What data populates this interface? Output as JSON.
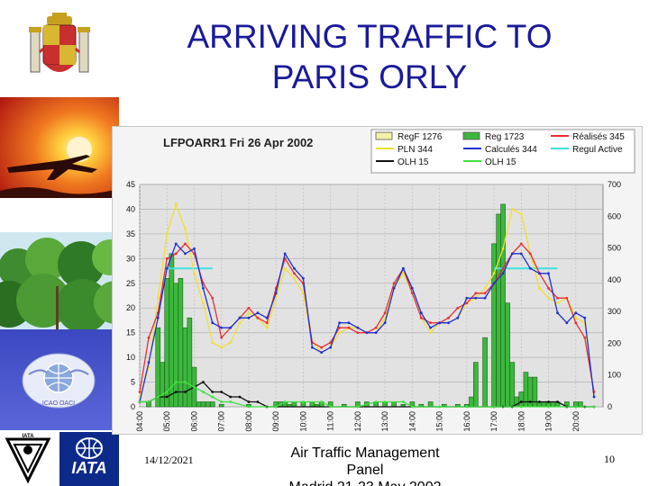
{
  "slide": {
    "title_line1": "ARRIVING TRAFFIC TO",
    "title_line2": "PARIS ORLY",
    "footer_date": "14/12/2021",
    "footer_center_line1": "Air Traffic Management",
    "footer_center_line2": "Panel",
    "footer_center_line3": "Madrid 21-23 May 2002",
    "page_number": "10",
    "logo_bottom_right_text": "IATA",
    "logo_bottom_left_text": "IATA",
    "icao_badge_text": "ICAO OACI",
    "colors": {
      "title": "#1a1a9a",
      "sidebar_top": "#c0302a",
      "sidebar_mid": "#4aa13a",
      "sidebar_low": "#4a56c8",
      "iata_blue": "#0d2a8a"
    }
  },
  "chart_data": {
    "type": "bar",
    "title": "LFPOARR1 Fri 26 Apr 2002",
    "xlabel": "",
    "ylabel": "",
    "ylim": [
      0,
      45
    ],
    "y2lim": [
      0,
      700
    ],
    "yticks": [
      "0",
      "5",
      "10",
      "15",
      "20",
      "25",
      "30",
      "35",
      "40",
      "45"
    ],
    "y2ticks": [
      "0",
      "100",
      "200",
      "300",
      "400",
      "500",
      "600",
      "700"
    ],
    "xticks": [
      "04:00",
      "05:00",
      "06:00",
      "07:00",
      "08:00",
      "09:00",
      "10:00",
      "11:00",
      "12:00",
      "13:00",
      "14:00",
      "15:00",
      "16:00",
      "17:00",
      "18:00",
      "19:00",
      "20:00"
    ],
    "grid": true,
    "legend_position": "top",
    "legend": [
      {
        "label": "RegF 1276",
        "kind": "box",
        "color": "#f4f2a8"
      },
      {
        "label": "Reg 1723",
        "kind": "box",
        "color": "#3cb83c"
      },
      {
        "label": "Réalisés 345",
        "kind": "line",
        "color": "#e83030"
      },
      {
        "label": "PLN 344",
        "kind": "line",
        "color": "#f0e030"
      },
      {
        "label": "Calculés 344",
        "kind": "line",
        "color": "#2030d0"
      },
      {
        "label": "Regul Active",
        "kind": "line",
        "color": "#40e0e0"
      },
      {
        "label": "OLH 15",
        "kind": "line",
        "color": "#101010"
      },
      {
        "label": "OLH 15",
        "kind": "line",
        "color": "#40e040"
      }
    ],
    "bars_reg": {
      "x": [
        4.33,
        4.67,
        4.83,
        5.0,
        5.17,
        5.33,
        5.5,
        5.67,
        5.83,
        6.0,
        6.17,
        6.33,
        6.5,
        6.67,
        7.0,
        8.0,
        9.0,
        9.17,
        9.33,
        9.5,
        9.67,
        10.0,
        10.33,
        10.5,
        10.67,
        11.0,
        11.5,
        12.0,
        12.33,
        12.67,
        13.0,
        13.33,
        13.67,
        14.0,
        14.33,
        14.67,
        15.17,
        15.67,
        16.0,
        16.17,
        16.33,
        16.67,
        17.0,
        17.17,
        17.33,
        17.5,
        17.67,
        17.83,
        18.0,
        18.17,
        18.33,
        18.5,
        18.67,
        18.83,
        19.0,
        19.17,
        19.33,
        19.67,
        20.0,
        20.17
      ],
      "values": [
        1,
        16,
        9,
        26,
        31,
        25,
        26,
        16,
        18,
        8,
        1,
        1,
        1,
        1,
        0.5,
        0.5,
        1,
        1,
        1,
        0.5,
        1,
        1,
        1,
        0.5,
        1,
        1,
        0.5,
        1,
        1,
        1,
        1,
        1,
        0.5,
        1,
        0.5,
        1,
        0.5,
        0.5,
        0.5,
        2,
        9,
        14,
        33,
        39,
        41,
        21,
        9,
        2,
        3,
        7,
        6,
        6,
        1,
        1,
        1,
        1,
        1,
        1,
        1,
        1
      ]
    },
    "series": [
      {
        "name": "PLN 344",
        "color": "#f0e030",
        "x": [
          4.0,
          4.33,
          4.67,
          5.0,
          5.33,
          5.67,
          6.0,
          6.33,
          6.67,
          7.0,
          7.33,
          7.67,
          8.0,
          8.33,
          8.67,
          9.0,
          9.33,
          9.67,
          10.0,
          10.33,
          10.67,
          11.0,
          11.33,
          11.67,
          12.0,
          12.33,
          12.67,
          13.0,
          13.33,
          13.67,
          14.0,
          14.33,
          14.67,
          15.0,
          15.33,
          15.67,
          16.0,
          16.33,
          16.67,
          17.0,
          17.33,
          17.67,
          18.0,
          18.33,
          18.67,
          19.0,
          19.33,
          19.67,
          20.0,
          20.33,
          20.67
        ],
        "values": [
          2,
          8,
          22,
          35,
          41,
          36,
          27,
          21,
          13,
          12,
          13,
          17,
          19,
          18,
          16,
          22,
          28,
          26,
          23,
          13,
          11,
          12,
          15,
          16,
          16,
          15,
          15,
          18,
          24,
          27,
          23,
          18,
          15,
          17,
          17,
          18,
          21,
          22,
          24,
          27,
          32,
          40,
          39,
          31,
          24,
          22,
          21,
          22,
          18,
          17,
          2
        ]
      },
      {
        "name": "Réalisés 345",
        "color": "#e83030",
        "x": [
          4.0,
          4.33,
          4.67,
          5.0,
          5.33,
          5.67,
          6.0,
          6.33,
          6.67,
          7.0,
          7.33,
          7.67,
          8.0,
          8.33,
          8.67,
          9.0,
          9.33,
          9.67,
          10.0,
          10.33,
          10.67,
          11.0,
          11.33,
          11.67,
          12.0,
          12.33,
          12.67,
          13.0,
          13.33,
          13.67,
          14.0,
          14.33,
          14.67,
          15.0,
          15.33,
          15.67,
          16.0,
          16.33,
          16.67,
          17.0,
          17.33,
          17.67,
          18.0,
          18.33,
          18.67,
          19.0,
          19.33,
          19.67,
          20.0,
          20.33,
          20.67
        ],
        "values": [
          3,
          14,
          19,
          30,
          31,
          33,
          31,
          25,
          22,
          14,
          16,
          18,
          20,
          18,
          17,
          24,
          30,
          27,
          25,
          13,
          12,
          13,
          16,
          16,
          15,
          15,
          16,
          19,
          25,
          28,
          23,
          18,
          17,
          17,
          18,
          20,
          21,
          23,
          23,
          25,
          28,
          31,
          33,
          31,
          27,
          24,
          22,
          22,
          17,
          14,
          3
        ]
      },
      {
        "name": "Calculés 344",
        "color": "#2030d0",
        "x": [
          4.0,
          4.33,
          4.67,
          5.0,
          5.33,
          5.67,
          6.0,
          6.33,
          6.67,
          7.0,
          7.33,
          7.67,
          8.0,
          8.33,
          8.67,
          9.0,
          9.33,
          9.67,
          10.0,
          10.33,
          10.67,
          11.0,
          11.33,
          11.67,
          12.0,
          12.33,
          12.67,
          13.0,
          13.33,
          13.67,
          14.0,
          14.33,
          14.67,
          15.0,
          15.33,
          15.67,
          16.0,
          16.33,
          16.67,
          17.0,
          17.33,
          17.67,
          18.0,
          18.33,
          18.67,
          19.0,
          19.33,
          19.67,
          20.0,
          20.33,
          20.67
        ],
        "values": [
          1,
          9,
          18,
          28,
          33,
          31,
          32,
          24,
          17,
          16,
          16,
          18,
          18,
          19,
          18,
          23,
          31,
          28,
          26,
          12,
          11,
          12,
          17,
          17,
          16,
          15,
          15,
          17,
          24,
          28,
          24,
          19,
          16,
          17,
          17,
          18,
          22,
          22,
          22,
          25,
          27,
          31,
          31,
          28,
          27,
          27,
          19,
          17,
          19,
          18,
          2
        ]
      },
      {
        "name": "OLH 15",
        "color": "#101010",
        "x": [
          4.0,
          4.33,
          4.67,
          5.0,
          5.33,
          5.67,
          6.0,
          6.33,
          6.67,
          7.0,
          7.33,
          7.67,
          8.0,
          8.33,
          8.67,
          9.0,
          17.0,
          17.33,
          17.67,
          18.0,
          18.33,
          18.67,
          19.0,
          19.33,
          19.67,
          20.0,
          20.33,
          20.67
        ],
        "values": [
          1,
          1,
          2,
          2,
          3,
          3,
          4,
          5,
          3,
          3,
          2,
          2,
          1,
          1,
          0,
          0,
          0,
          0,
          0,
          1,
          1,
          1,
          1,
          1,
          0,
          0,
          0,
          0
        ]
      },
      {
        "name": "OLH 15",
        "color": "#40e040",
        "x": [
          4.0,
          4.33,
          4.67,
          5.0,
          5.33,
          5.67,
          6.0,
          6.33,
          6.67,
          7.0,
          7.33,
          8.0,
          9.0,
          9.33,
          10.0,
          10.67,
          11.0,
          12.0,
          12.67,
          13.0,
          13.67,
          14.0,
          15.0,
          16.0,
          17.0,
          18.0,
          19.0,
          20.0,
          20.67
        ],
        "values": [
          1,
          1,
          2,
          3,
          5,
          5,
          4,
          3,
          2,
          1,
          1,
          0,
          0,
          1,
          1,
          1,
          0,
          0,
          1,
          1,
          1,
          0,
          0,
          0,
          0,
          0,
          0,
          0,
          0
        ]
      }
    ],
    "regul_active": [
      {
        "start": 5.0,
        "end": 6.67,
        "value": 28
      },
      {
        "start": 17.0,
        "end": 19.33,
        "value": 28
      }
    ],
    "sidebar_icons": [
      "spain-coat-of-arms",
      "sunset-airplane-photo",
      "tropical-forest-photo",
      "icao-emblem",
      "iata-logo"
    ]
  }
}
